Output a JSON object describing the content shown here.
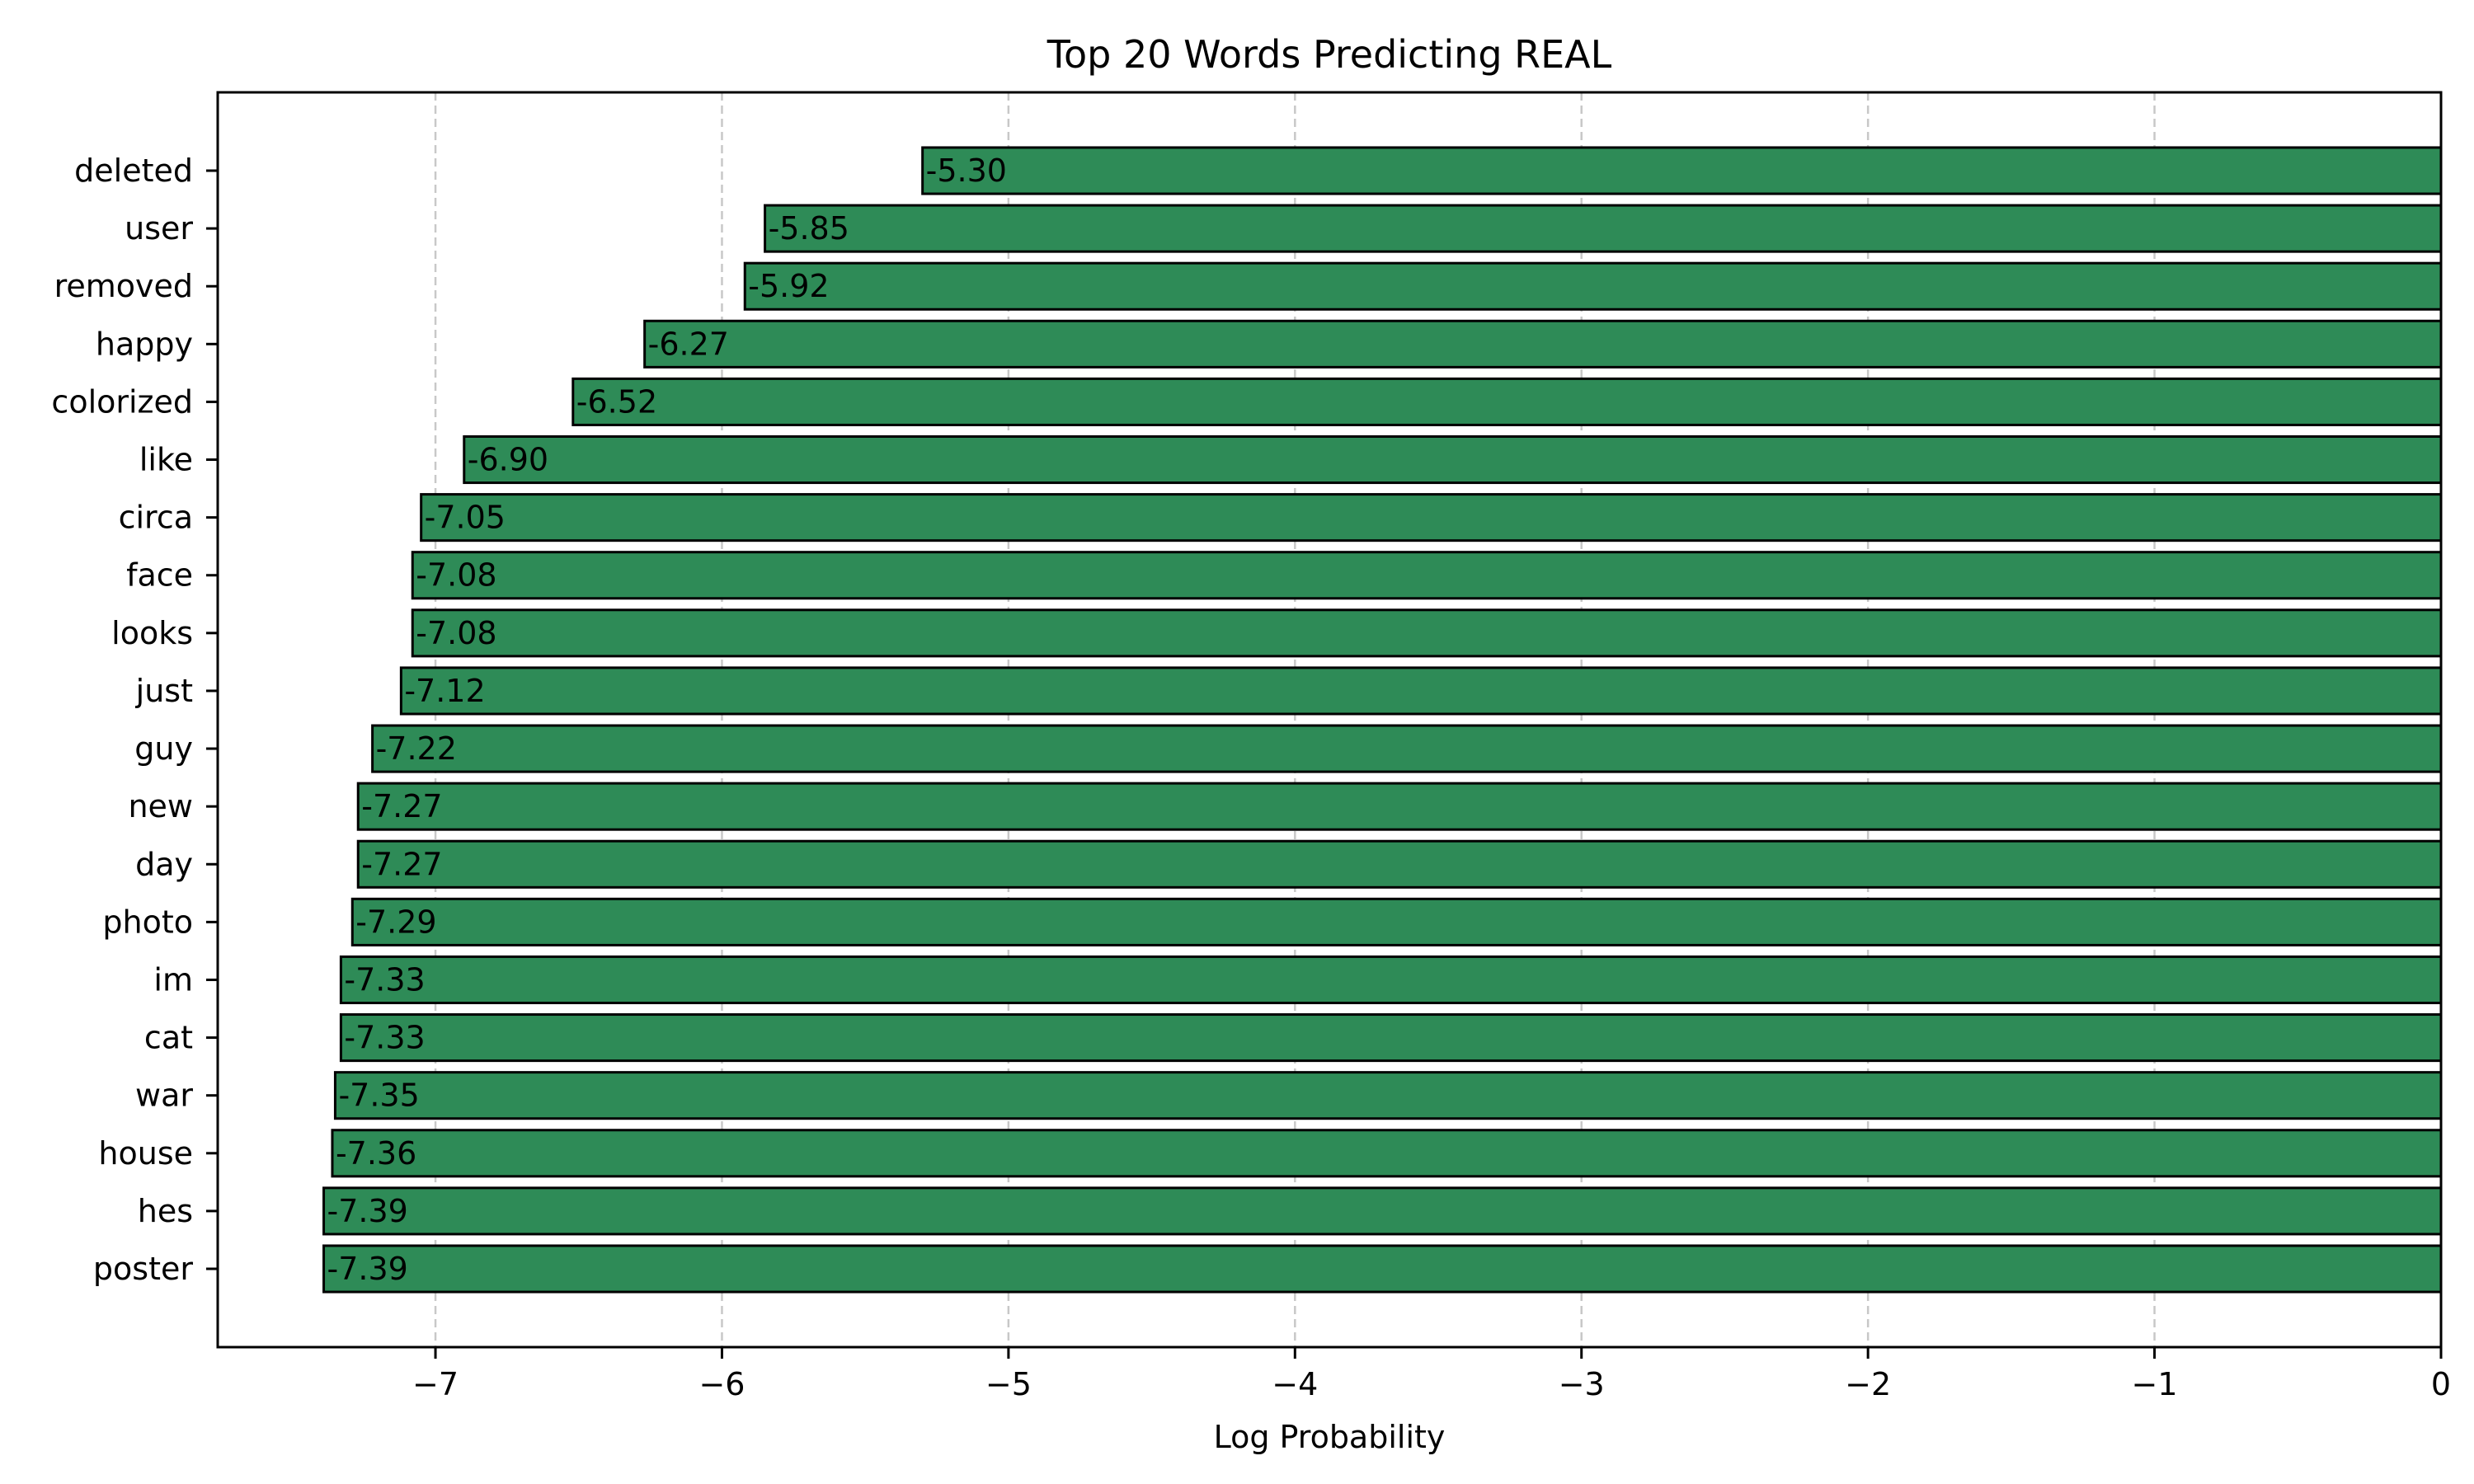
{
  "chart_data": {
    "type": "bar",
    "orientation": "horizontal",
    "title": "Top 20 Words Predicting REAL",
    "xlabel": "Log Probability",
    "ylabel": "",
    "xlim": [
      -7.76,
      0
    ],
    "xticks": [
      -7,
      -6,
      -5,
      -4,
      -3,
      -2,
      -1,
      0
    ],
    "xtick_labels": [
      "−7",
      "−6",
      "−5",
      "−4",
      "−3",
      "−2",
      "−1",
      "0"
    ],
    "grid": "x-dashed",
    "bar_color": "#2e8b57",
    "bar_edge_color": "#000000",
    "categories": [
      "deleted",
      "user",
      "removed",
      "happy",
      "colorized",
      "like",
      "circa",
      "face",
      "looks",
      "just",
      "guy",
      "new",
      "day",
      "photo",
      "im",
      "cat",
      "war",
      "house",
      "hes",
      "poster"
    ],
    "values": [
      -5.3,
      -5.85,
      -5.92,
      -6.27,
      -6.52,
      -6.9,
      -7.05,
      -7.08,
      -7.08,
      -7.12,
      -7.22,
      -7.27,
      -7.27,
      -7.29,
      -7.33,
      -7.33,
      -7.35,
      -7.36,
      -7.39,
      -7.39
    ],
    "value_labels": [
      "-5.30",
      "-5.85",
      "-5.92",
      "-6.27",
      "-6.52",
      "-6.90",
      "-7.05",
      "-7.08",
      "-7.08",
      "-7.12",
      "-7.22",
      "-7.27",
      "-7.27",
      "-7.29",
      "-7.33",
      "-7.33",
      "-7.35",
      "-7.36",
      "-7.39",
      "-7.39"
    ]
  }
}
